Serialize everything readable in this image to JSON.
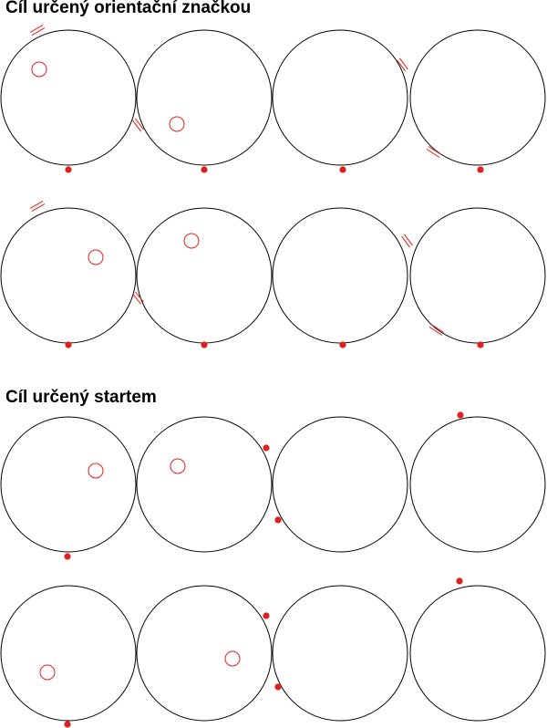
{
  "sections": [
    {
      "title": "Cíl určený orientační značkou"
    },
    {
      "title": "Cíl určený startem"
    }
  ],
  "colors": {
    "outline": "#000000",
    "marker": "#e0201c",
    "target": "#e0201c"
  }
}
